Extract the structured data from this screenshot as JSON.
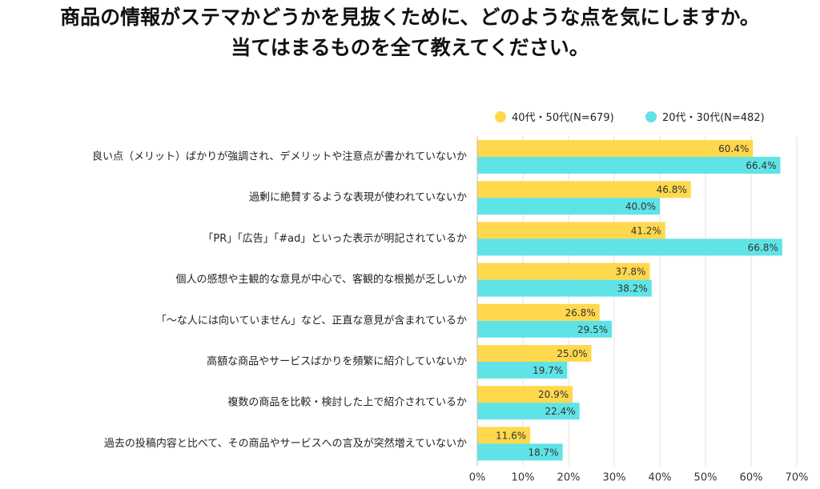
{
  "chart_data": {
    "type": "bar",
    "orientation": "horizontal",
    "title": "商品の情報がステマかどうかを見抜くために、どのような点を気にしますか。",
    "subtitle": "当てはまるものを全て教えてください。",
    "categories": [
      "良い点（メリット）ばかりが強調され、デメリットや注意点が書かれていないか",
      "過剰に絶賛するような表現が使われていないか",
      "「PR」「広告」「#ad」といった表示が明記されているか",
      "個人の感想や主観的な意見が中心で、客観的な根拠が乏しいか",
      "「～な人には向いていません」など、正直な意見が含まれているか",
      "高額な商品やサービスばかりを頻繁に紹介していないか",
      "複数の商品を比較・検討した上で紹介されているか",
      "過去の投稿内容と比べて、その商品やサービスへの言及が突然増えていないか"
    ],
    "series": [
      {
        "name": "40代・50代(N=679)",
        "color": "#FFD84D",
        "values": [
          60.4,
          46.8,
          41.2,
          37.8,
          26.8,
          25.0,
          20.9,
          11.6
        ]
      },
      {
        "name": "20代・30代(N=482)",
        "color": "#5FE3E6",
        "values": [
          66.4,
          40.0,
          66.8,
          38.2,
          29.5,
          19.7,
          22.4,
          18.7
        ]
      }
    ],
    "xlim": [
      0,
      70
    ],
    "xticks": [
      0,
      10,
      20,
      30,
      40,
      50,
      60,
      70
    ],
    "tick_format": "%",
    "value_format": "%",
    "grid": true,
    "legend_position": "top-right"
  }
}
